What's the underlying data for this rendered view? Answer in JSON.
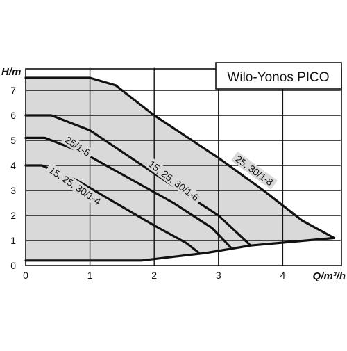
{
  "chart_data": {
    "type": "line",
    "title": "Wilo-Yonos PICO",
    "xlabel": "Q/m³/h",
    "ylabel": "H/m",
    "xlim": [
      0,
      4.9
    ],
    "ylim": [
      0,
      7.9
    ],
    "x_ticks": [
      "0",
      "1",
      "2",
      "3",
      "4"
    ],
    "y_ticks": [
      "0",
      "1",
      "2",
      "3",
      "4",
      "5",
      "6",
      "7"
    ],
    "grid": true,
    "operating_area_color": "#d9d9d9",
    "curve_color": "#111111",
    "series": [
      {
        "name": "25, 30/1-8",
        "points": [
          [
            0,
            7.5
          ],
          [
            1,
            7.5
          ],
          [
            1.4,
            7.2
          ],
          [
            2.0,
            6.0
          ],
          [
            3.0,
            4.3
          ],
          [
            3.7,
            3.0
          ],
          [
            4.3,
            1.8
          ],
          [
            4.8,
            1.1
          ]
        ]
      },
      {
        "name": "15, 25, 30/1-6",
        "points": [
          [
            0,
            6.0
          ],
          [
            0.4,
            6.0
          ],
          [
            1.0,
            5.4
          ],
          [
            1.7,
            4.2
          ],
          [
            2.4,
            3.0
          ],
          [
            3.0,
            2.0
          ],
          [
            3.5,
            0.8
          ]
        ]
      },
      {
        "name": "25/1-5",
        "points": [
          [
            0,
            5.1
          ],
          [
            0.3,
            5.1
          ],
          [
            0.9,
            4.5
          ],
          [
            1.6,
            3.5
          ],
          [
            2.3,
            2.5
          ],
          [
            2.9,
            1.5
          ],
          [
            3.2,
            0.7
          ]
        ]
      },
      {
        "name": "15, 25, 30/1-4",
        "points": [
          [
            0,
            4.0
          ],
          [
            0.25,
            4.0
          ],
          [
            0.8,
            3.4
          ],
          [
            1.4,
            2.5
          ],
          [
            2.0,
            1.6
          ],
          [
            2.5,
            0.9
          ],
          [
            2.7,
            0.5
          ]
        ]
      }
    ],
    "min_curve": [
      [
        0,
        0.2
      ],
      [
        1.8,
        0.2
      ],
      [
        2.8,
        0.5
      ],
      [
        3.5,
        0.8
      ],
      [
        4.8,
        1.1
      ]
    ]
  }
}
